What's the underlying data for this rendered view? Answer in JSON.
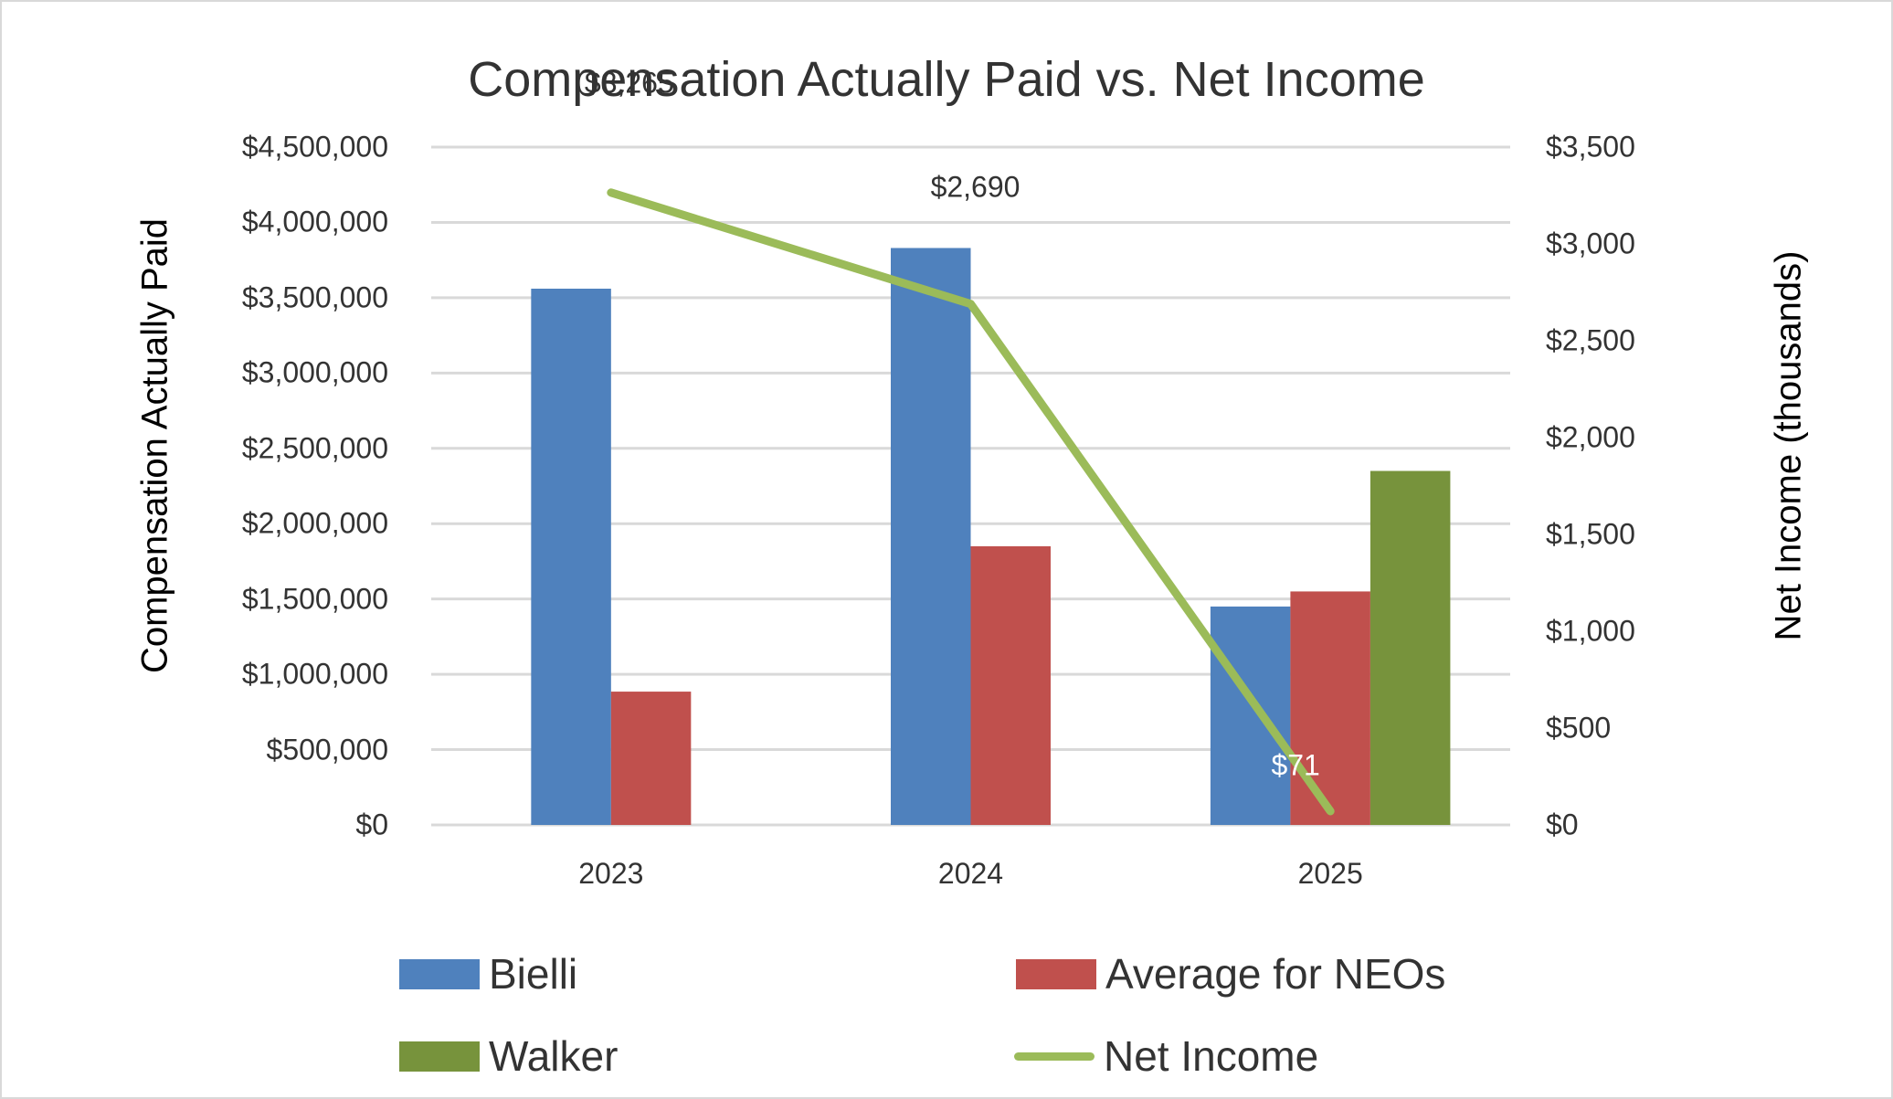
{
  "chart_data": {
    "type": "bar",
    "combo": "bar+line (dual axis)",
    "title": "Compensation Actually Paid vs. Net Income",
    "categories": [
      "2023",
      "2024",
      "2025"
    ],
    "xlabel": "",
    "ylabel": "Compensation Actually Paid",
    "ylabel_right": "Net Income (thousands)",
    "ylim": [
      0,
      4500000
    ],
    "ylim_right": [
      0,
      3500
    ],
    "yticks": [
      "$0",
      "$500,000",
      "$1,000,000",
      "$1,500,000",
      "$2,000,000",
      "$2,500,000",
      "$3,000,000",
      "$3,500,000",
      "$4,000,000",
      "$4,500,000"
    ],
    "yticks_right": [
      "$0",
      "$500",
      "$1,000",
      "$1,500",
      "$2,000",
      "$2,500",
      "$3,000",
      "$3,500"
    ],
    "grid": true,
    "legend_position": "bottom",
    "series": [
      {
        "name": "Bielli",
        "type": "bar",
        "axis": "left",
        "color": "#4f81bd",
        "values": [
          3560000,
          3830000,
          1450000
        ]
      },
      {
        "name": "Average for NEOs",
        "type": "bar",
        "axis": "left",
        "color": "#c0504d",
        "values": [
          885000,
          1850000,
          1550000
        ]
      },
      {
        "name": "Walker",
        "type": "bar",
        "axis": "left",
        "color": "#77933c",
        "values": [
          null,
          null,
          2350000
        ]
      },
      {
        "name": "Net Income",
        "type": "line",
        "axis": "right",
        "color": "#9bbb59",
        "values": [
          3265,
          2690,
          71
        ],
        "data_labels": [
          "$3,265",
          "$2,690",
          "$71"
        ]
      }
    ]
  },
  "colors": {
    "bielli": "#4f81bd",
    "neos": "#c0504d",
    "walker": "#77933c",
    "net_income": "#9bbb59",
    "grid": "#d9d9d9",
    "text": "#333333"
  },
  "legend": {
    "items": [
      {
        "label": "Bielli"
      },
      {
        "label": "Average for NEOs"
      },
      {
        "label": "Walker"
      },
      {
        "label": "Net Income"
      }
    ]
  }
}
